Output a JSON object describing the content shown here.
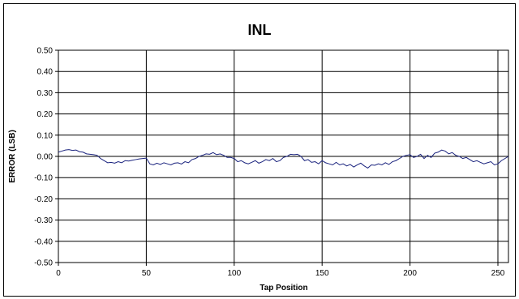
{
  "chart_data": {
    "type": "line",
    "title": "INL",
    "xlabel": "Tap Position",
    "ylabel": "ERROR (LSB)",
    "xlim": [
      0,
      256
    ],
    "ylim": [
      -0.5,
      0.5
    ],
    "x_ticks": [
      "0",
      "50",
      "100",
      "150",
      "200",
      "250"
    ],
    "x_tick_values": [
      0,
      50,
      100,
      150,
      200,
      250
    ],
    "y_ticks": [
      "0.50",
      "0.40",
      "0.30",
      "0.20",
      "0.10",
      "0.00",
      "-0.10",
      "-0.20",
      "-0.30",
      "-0.40",
      "-0.50"
    ],
    "y_tick_values": [
      0.5,
      0.4,
      0.3,
      0.2,
      0.1,
      0.0,
      -0.1,
      -0.2,
      -0.3,
      -0.4,
      -0.5
    ],
    "grid": true,
    "legend": "none",
    "line_color": "#1a237e",
    "series": [
      {
        "x": [
          0,
          2,
          4,
          6,
          8,
          10,
          12,
          14,
          16,
          18,
          20,
          22,
          24,
          26,
          28,
          30,
          32,
          34,
          36,
          38,
          40,
          42,
          44,
          46,
          48,
          50,
          52,
          54,
          56,
          58,
          60,
          62,
          64,
          66,
          68,
          70,
          72,
          74,
          76,
          78,
          80,
          82,
          84,
          86,
          88,
          90,
          92,
          94,
          96,
          98,
          100,
          102,
          104,
          106,
          108,
          110,
          112,
          114,
          116,
          118,
          120,
          122,
          124,
          126,
          128,
          130,
          132,
          134,
          136,
          138,
          140,
          142,
          144,
          146,
          148,
          150,
          152,
          154,
          156,
          158,
          160,
          162,
          164,
          166,
          168,
          170,
          172,
          174,
          176,
          178,
          180,
          182,
          184,
          186,
          188,
          190,
          192,
          194,
          196,
          198,
          200,
          202,
          204,
          206,
          208,
          210,
          212,
          214,
          216,
          218,
          220,
          222,
          224,
          226,
          228,
          230,
          232,
          234,
          236,
          238,
          240,
          242,
          244,
          246,
          248,
          250,
          252,
          254,
          256
        ],
        "values": [
          0.02,
          0.025,
          0.03,
          0.032,
          0.028,
          0.03,
          0.022,
          0.02,
          0.012,
          0.01,
          0.008,
          0.005,
          -0.01,
          -0.02,
          -0.03,
          -0.028,
          -0.032,
          -0.025,
          -0.03,
          -0.02,
          -0.022,
          -0.018,
          -0.015,
          -0.012,
          -0.01,
          -0.008,
          -0.035,
          -0.04,
          -0.032,
          -0.038,
          -0.03,
          -0.035,
          -0.04,
          -0.032,
          -0.03,
          -0.036,
          -0.025,
          -0.03,
          -0.015,
          -0.01,
          0.0,
          0.005,
          0.012,
          0.01,
          0.018,
          0.008,
          0.012,
          0.005,
          -0.005,
          -0.005,
          -0.01,
          -0.025,
          -0.02,
          -0.03,
          -0.035,
          -0.028,
          -0.02,
          -0.032,
          -0.025,
          -0.015,
          -0.02,
          -0.01,
          -0.025,
          -0.02,
          -0.005,
          0.0,
          0.01,
          0.008,
          0.01,
          0.0,
          -0.02,
          -0.015,
          -0.028,
          -0.025,
          -0.035,
          -0.02,
          -0.03,
          -0.035,
          -0.04,
          -0.028,
          -0.04,
          -0.035,
          -0.045,
          -0.038,
          -0.05,
          -0.04,
          -0.032,
          -0.045,
          -0.055,
          -0.04,
          -0.042,
          -0.035,
          -0.04,
          -0.03,
          -0.038,
          -0.025,
          -0.02,
          -0.01,
          0.0,
          0.005,
          0.008,
          -0.005,
          0.0,
          0.01,
          -0.01,
          0.005,
          -0.005,
          0.015,
          0.02,
          0.03,
          0.025,
          0.012,
          0.018,
          0.005,
          0.0,
          -0.01,
          -0.005,
          -0.015,
          -0.025,
          -0.02,
          -0.028,
          -0.035,
          -0.03,
          -0.025,
          -0.04,
          -0.035,
          -0.02,
          -0.01,
          0.0
        ]
      }
    ]
  }
}
